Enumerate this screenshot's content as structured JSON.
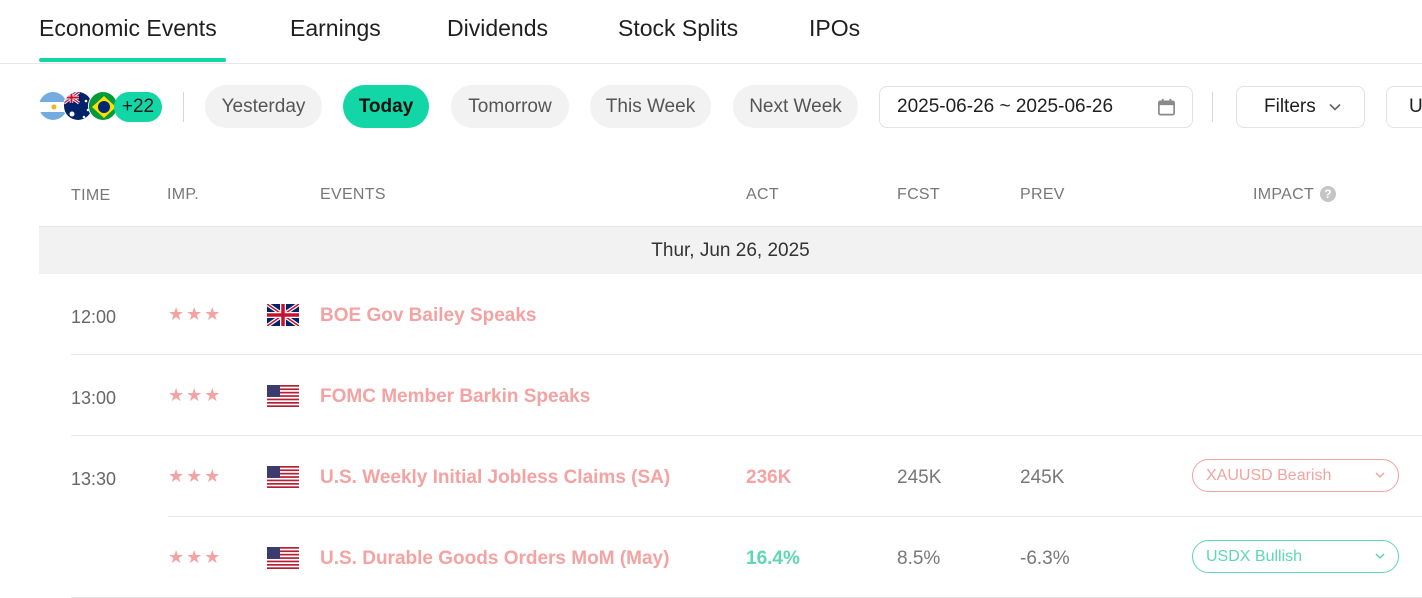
{
  "tabs": [
    {
      "label": "Economic Events",
      "active": true
    },
    {
      "label": "Earnings",
      "active": false
    },
    {
      "label": "Dividends",
      "active": false
    },
    {
      "label": "Stock Splits",
      "active": false
    },
    {
      "label": "IPOs",
      "active": false
    }
  ],
  "filters": {
    "country_flags": [
      "argentina-flag-icon",
      "australia-flag-icon",
      "brazil-flag-icon"
    ],
    "more_countries": "+22",
    "periods": [
      {
        "label": "Yesterday",
        "active": false
      },
      {
        "label": "Today",
        "active": true
      },
      {
        "label": "Tomorrow",
        "active": false
      },
      {
        "label": "This Week",
        "active": false
      },
      {
        "label": "Next Week",
        "active": false
      }
    ],
    "date_range": "2025-06-26 ~ 2025-06-26",
    "filters_label": "Filters",
    "more_label": "U"
  },
  "table": {
    "headers": {
      "time": "TIME",
      "importance": "IMP.",
      "events": "EVENTS",
      "actual": "ACT",
      "forecast": "FCST",
      "previous": "PREV",
      "impact": "IMPACT"
    },
    "date_group": "Thur, Jun 26, 2025",
    "rows": [
      {
        "time": "12:00",
        "stars": "★★★",
        "flag": "uk-flag-icon",
        "event": "BOE Gov Bailey Speaks",
        "act": "",
        "fcst": "",
        "prev": "",
        "impact": ""
      },
      {
        "time": "13:00",
        "stars": "★★★",
        "flag": "us-flag-icon",
        "event": "FOMC Member Barkin Speaks",
        "act": "",
        "fcst": "",
        "prev": "",
        "impact": ""
      },
      {
        "time": "13:30",
        "stars": "★★★",
        "flag": "us-flag-icon",
        "event": "U.S. Weekly Initial Jobless Claims (SA)",
        "act": "236K",
        "act_color": "#f4a2a2",
        "fcst": "245K",
        "prev": "245K",
        "impact": "XAUUSD Bearish",
        "impact_color": "#f4a2a2"
      },
      {
        "time": "",
        "stars": "★★★",
        "flag": "us-flag-icon",
        "event": "U.S. Durable Goods Orders MoM (May)",
        "act": "16.4%",
        "act_color": "#5dd8b3",
        "fcst": "8.5%",
        "prev": "-6.3%",
        "impact": "USDX Bullish",
        "impact_color": "#5dd8b3"
      }
    ]
  },
  "colors": {
    "accent": "#13d6a6",
    "bearish": "#f4a2a2",
    "bullish": "#5dd8b3"
  }
}
